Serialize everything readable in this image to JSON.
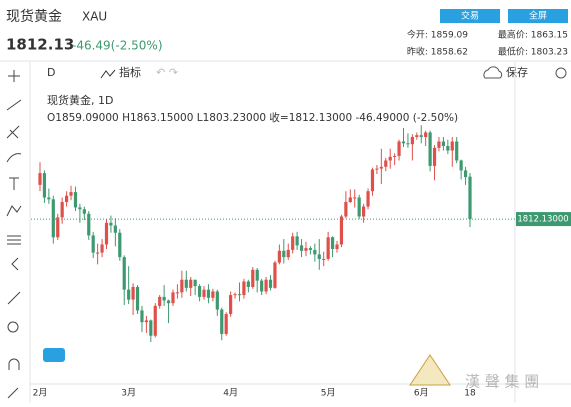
{
  "header": {
    "title": "现货黄金",
    "symbol": "XAU",
    "price": "1812.13",
    "change": "-46.49(-2.50%)",
    "buttons": [
      "交易",
      "全屏"
    ],
    "stats": [
      "今开: 1859.09",
      "最高价: 1863.15",
      "昨收: 1858.62",
      "最低价: 1803.23"
    ]
  },
  "toolbar": {
    "interval": "D",
    "indicators": "指标",
    "save": "保存"
  },
  "legend": {
    "name": "现货黄金, 1D",
    "ohlc": "O1859.09000  H1863.15000  L1803.23000  收=1812.13000  -46.49000 (-2.50%)"
  },
  "watermark": "漢 聲 集 團",
  "chart_data": {
    "type": "candlestick",
    "categories": [
      "2月",
      null,
      null,
      null,
      null,
      null,
      null,
      null,
      null,
      null,
      null,
      null,
      null,
      null,
      null,
      null,
      null,
      null,
      null,
      null,
      "3月",
      null,
      null,
      null,
      null,
      null,
      null,
      null,
      null,
      null,
      null,
      null,
      null,
      null,
      null,
      null,
      null,
      null,
      null,
      null,
      null,
      null,
      null,
      "4月",
      null,
      null,
      null,
      null,
      null,
      null,
      null,
      null,
      null,
      null,
      null,
      null,
      null,
      null,
      null,
      null,
      null,
      null,
      null,
      null,
      null,
      "5月",
      null,
      null,
      null,
      null,
      null,
      null,
      null,
      null,
      null,
      null,
      null,
      null,
      null,
      null,
      null,
      null,
      null,
      null,
      null,
      null,
      "6月",
      null,
      null,
      null,
      null,
      null,
      null,
      null,
      null,
      null,
      null,
      "18"
    ],
    "open": [
      1850,
      1863,
      1836,
      1834,
      1792,
      1814,
      1831,
      1838,
      1842,
      1825,
      1823,
      1818,
      1794,
      1775,
      1775,
      1784,
      1808,
      1805,
      1797,
      1770,
      1734,
      1723,
      1737,
      1711,
      1698,
      1700,
      1683,
      1716,
      1726,
      1722,
      1719,
      1731,
      1731,
      1745,
      1736,
      1745,
      1738,
      1726,
      1734,
      1725,
      1732,
      1712,
      1685,
      1707,
      1728,
      1729,
      1728,
      1743,
      1737,
      1756,
      1744,
      1732,
      1745,
      1736,
      1764,
      1777,
      1770,
      1778,
      1793,
      1783,
      1777,
      1780,
      1778,
      1773,
      1768,
      1768,
      1792,
      1779,
      1784,
      1815,
      1831,
      1836,
      1836,
      1815,
      1826,
      1843,
      1867,
      1868,
      1870,
      1877,
      1881,
      1882,
      1898,
      1896,
      1895,
      1903,
      1905,
      1903,
      1908,
      1871,
      1891,
      1898,
      1893,
      1888,
      1898,
      1877,
      1866,
      1859.09
    ],
    "high": [
      1875,
      1866,
      1846,
      1838,
      1818,
      1836,
      1843,
      1849,
      1848,
      1829,
      1826,
      1821,
      1798,
      1785,
      1790,
      1812,
      1816,
      1813,
      1801,
      1772,
      1760,
      1741,
      1739,
      1716,
      1705,
      1701,
      1719,
      1728,
      1739,
      1723,
      1734,
      1740,
      1755,
      1755,
      1748,
      1745,
      1740,
      1738,
      1740,
      1735,
      1734,
      1714,
      1709,
      1732,
      1731,
      1742,
      1746,
      1745,
      1759,
      1758,
      1746,
      1748,
      1750,
      1766,
      1784,
      1790,
      1785,
      1797,
      1798,
      1790,
      1787,
      1782,
      1785,
      1790,
      1776,
      1798,
      1793,
      1788,
      1817,
      1843,
      1845,
      1845,
      1839,
      1829,
      1846,
      1869,
      1872,
      1890,
      1880,
      1890,
      1885,
      1900,
      1913,
      1907,
      1906,
      1908,
      1916,
      1910,
      1910,
      1894,
      1903,
      1903,
      1900,
      1903,
      1903,
      1878,
      1870,
      1863.15
    ],
    "low": [
      1843,
      1830,
      1829,
      1785,
      1789,
      1807,
      1826,
      1833,
      1821,
      1808,
      1811,
      1789,
      1769,
      1762,
      1770,
      1779,
      1797,
      1782,
      1766,
      1717,
      1718,
      1706,
      1707,
      1687,
      1686,
      1676,
      1681,
      1713,
      1716,
      1697,
      1716,
      1724,
      1725,
      1732,
      1727,
      1728,
      1721,
      1723,
      1719,
      1721,
      1705,
      1678,
      1683,
      1704,
      1724,
      1721,
      1724,
      1731,
      1735,
      1731,
      1728,
      1729,
      1733,
      1735,
      1762,
      1763,
      1767,
      1774,
      1778,
      1770,
      1771,
      1773,
      1765,
      1756,
      1760,
      1766,
      1770,
      1775,
      1781,
      1813,
      1830,
      1825,
      1812,
      1808,
      1823,
      1838,
      1862,
      1851,
      1865,
      1868,
      1872,
      1877,
      1892,
      1891,
      1877,
      1900,
      1896,
      1893,
      1865,
      1855,
      1887,
      1888,
      1884,
      1870,
      1874,
      1856,
      1850,
      1803.23
    ],
    "close": [
      1863,
      1836,
      1834,
      1792,
      1814,
      1831,
      1838,
      1842,
      1825,
      1823,
      1818,
      1794,
      1775,
      1775,
      1784,
      1808,
      1805,
      1797,
      1770,
      1734,
      1723,
      1737,
      1711,
      1698,
      1700,
      1683,
      1716,
      1726,
      1722,
      1719,
      1731,
      1731,
      1745,
      1736,
      1745,
      1738,
      1726,
      1734,
      1725,
      1732,
      1712,
      1685,
      1707,
      1728,
      1729,
      1728,
      1743,
      1737,
      1756,
      1744,
      1732,
      1745,
      1736,
      1764,
      1777,
      1770,
      1778,
      1793,
      1783,
      1777,
      1780,
      1778,
      1773,
      1768,
      1768,
      1792,
      1779,
      1784,
      1815,
      1831,
      1836,
      1836,
      1815,
      1826,
      1843,
      1867,
      1868,
      1870,
      1877,
      1881,
      1882,
      1898,
      1896,
      1895,
      1903,
      1905,
      1903,
      1908,
      1871,
      1891,
      1898,
      1893,
      1888,
      1898,
      1877,
      1866,
      1858.62,
      1812.13
    ],
    "up_color": "#e0504a",
    "down_color": "#3d9970",
    "ylim": [
      1634,
      1955
    ],
    "last_price": 1812.13,
    "last_price_label": "1812.13000",
    "last_price_color": "#3d9970"
  }
}
